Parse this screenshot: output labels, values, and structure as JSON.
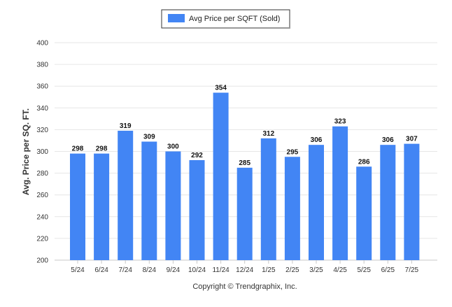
{
  "chart_data": {
    "type": "bar",
    "categories": [
      "5/24",
      "6/24",
      "7/24",
      "8/24",
      "9/24",
      "10/24",
      "11/24",
      "12/24",
      "1/25",
      "2/25",
      "3/25",
      "4/25",
      "5/25",
      "6/25",
      "7/25"
    ],
    "series": [
      {
        "name": "Avg Price per SQFT (Sold)",
        "values": [
          298,
          298,
          319,
          309,
          300,
          292,
          354,
          285,
          312,
          295,
          306,
          323,
          286,
          306,
          307
        ],
        "color": "#4285f4"
      }
    ],
    "ylabel": "Avg. Price per SQ. FT.",
    "xlabel": "",
    "ylim": [
      200,
      400
    ],
    "yticks": [
      200,
      220,
      240,
      260,
      280,
      300,
      320,
      340,
      360,
      380,
      400
    ],
    "grid": true,
    "legend_position": "top-center",
    "data_labels": true
  },
  "footer": {
    "copyright": "Copyright © Trendgraphix, Inc."
  },
  "colors": {
    "bar": "#4285f4",
    "grid": "#e6e6e6",
    "legend_border": "#333333"
  }
}
